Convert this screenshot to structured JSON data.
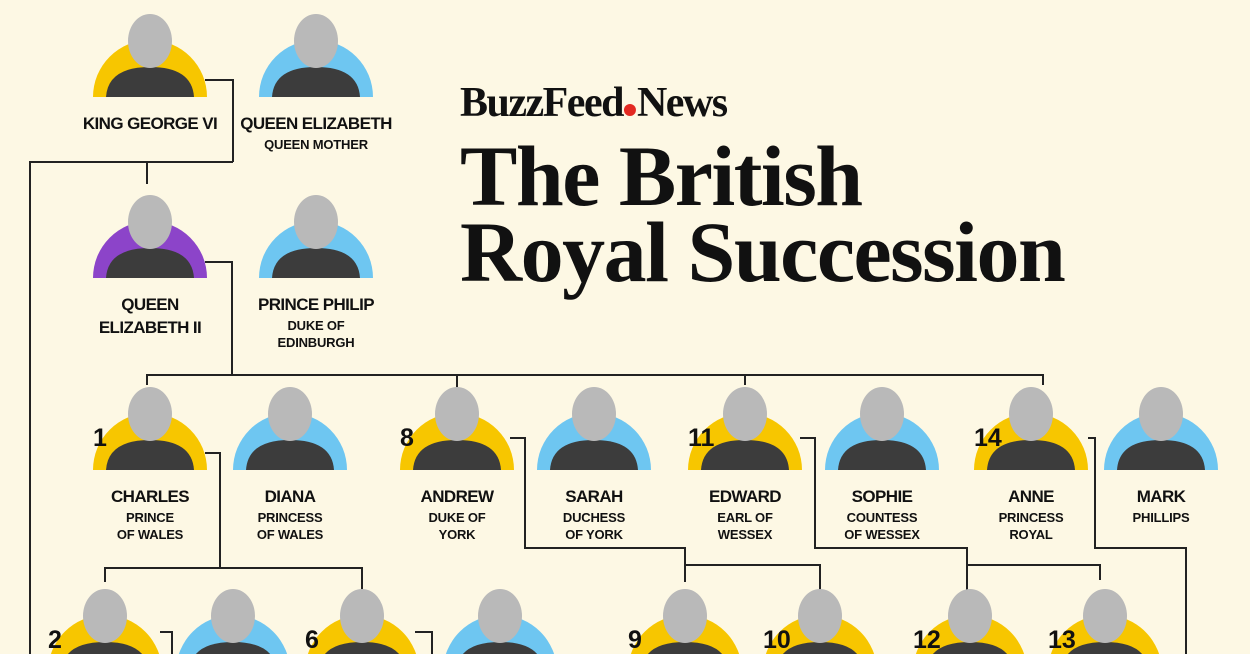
{
  "header": {
    "brand": "BuzzFeed",
    "brand_suffix": "News",
    "title_lines": [
      "The British",
      "Royal Succession"
    ]
  },
  "nodes": [
    {
      "name": [
        "KING GEORGE VI"
      ],
      "title": [],
      "color": "#f7c600"
    },
    {
      "name": [
        "QUEEN ELIZABETH"
      ],
      "title": [
        "QUEEN MOTHER"
      ],
      "color": "#6ec6f1"
    },
    {
      "name": [
        "QUEEN",
        "ELIZABETH II"
      ],
      "title": [],
      "color": "#8c44c9"
    },
    {
      "name": [
        "PRINCE PHILIP"
      ],
      "title": [
        "DUKE OF",
        "EDINBURGH"
      ],
      "color": "#6ec6f1"
    },
    {
      "rank": 1,
      "name": [
        "CHARLES"
      ],
      "title": [
        "PRINCE",
        "OF WALES"
      ],
      "color": "#f7c600"
    },
    {
      "name": [
        "DIANA"
      ],
      "title": [
        "PRINCESS",
        "OF WALES"
      ],
      "color": "#6ec6f1"
    },
    {
      "rank": 8,
      "name": [
        "ANDREW"
      ],
      "title": [
        "DUKE OF",
        "YORK"
      ],
      "color": "#f7c600"
    },
    {
      "name": [
        "SARAH"
      ],
      "title": [
        "DUCHESS",
        "OF YORK"
      ],
      "color": "#6ec6f1"
    },
    {
      "rank": 11,
      "name": [
        "EDWARD"
      ],
      "title": [
        "EARL OF",
        "WESSEX"
      ],
      "color": "#f7c600"
    },
    {
      "name": [
        "SOPHIE"
      ],
      "title": [
        "COUNTESS",
        "OF WESSEX"
      ],
      "color": "#6ec6f1"
    },
    {
      "rank": 14,
      "name": [
        "ANNE"
      ],
      "title": [
        "PRINCESS",
        "ROYAL"
      ],
      "color": "#f7c600"
    },
    {
      "name": [
        "MARK"
      ],
      "title": [
        "PHILLIPS"
      ],
      "color": "#6ec6f1"
    },
    {
      "rank": 2,
      "name": [],
      "title": [],
      "color": "#f7c600"
    },
    {
      "name": [],
      "title": [],
      "color": "#6ec6f1"
    },
    {
      "rank": 6,
      "name": [],
      "title": [],
      "color": "#f7c600"
    },
    {
      "name": [],
      "title": [],
      "color": "#6ec6f1"
    },
    {
      "rank": 9,
      "name": [],
      "title": [],
      "color": "#f7c600"
    },
    {
      "rank": 10,
      "name": [],
      "title": [],
      "color": "#f7c600"
    },
    {
      "rank": 12,
      "name": [],
      "title": [],
      "color": "#f7c600"
    },
    {
      "rank": 13,
      "name": [],
      "title": [],
      "color": "#f7c600"
    }
  ]
}
